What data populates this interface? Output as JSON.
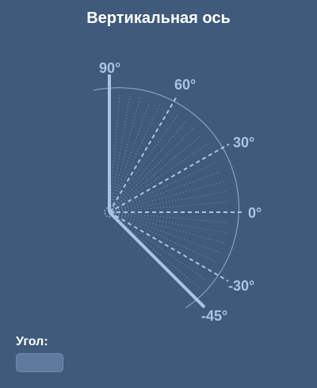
{
  "header": {
    "title": "Вертикальная ось"
  },
  "diagram": {
    "angle_labels": [
      "90°",
      "60°",
      "30°",
      "0°",
      "-30°",
      "-45°"
    ],
    "colors": {
      "background": "#3f5a7b",
      "line": "#a9c5e6",
      "label": "#a9c5e6"
    }
  },
  "angle_field": {
    "label": "Угол:",
    "value": ""
  }
}
